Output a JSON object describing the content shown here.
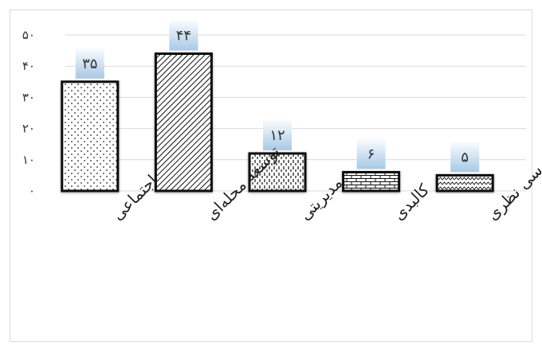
{
  "chart_data": {
    "type": "bar",
    "categories": [
      "اجتماعی",
      "توسعه محله‌ای",
      "مدیریتی",
      "کالبدی",
      "بررسی نظری"
    ],
    "values": [
      35,
      44,
      12,
      6,
      5
    ],
    "data_labels": [
      "۳۵",
      "۴۴",
      "۱۲",
      "۶",
      "۵"
    ],
    "yticks": [
      0,
      10,
      20,
      30,
      40,
      50
    ],
    "ytick_labels": [
      "۰",
      "۱۰",
      "۲۰",
      "۳۰",
      "۴۰",
      "۵۰"
    ],
    "ylim": [
      0,
      50
    ],
    "title": "",
    "xlabel": "",
    "ylabel": "",
    "grid": true,
    "legend": "none",
    "patterns": [
      "dots",
      "diagonal-lines",
      "vertical-dashes",
      "bricks",
      "zigzag"
    ],
    "colors": {
      "bar_outline": "#111111",
      "label_box_top": "#ffffff",
      "label_box_bottom": "#a8c8e6",
      "gridline": "#d9d9d9",
      "axis_text": "#333333"
    }
  }
}
